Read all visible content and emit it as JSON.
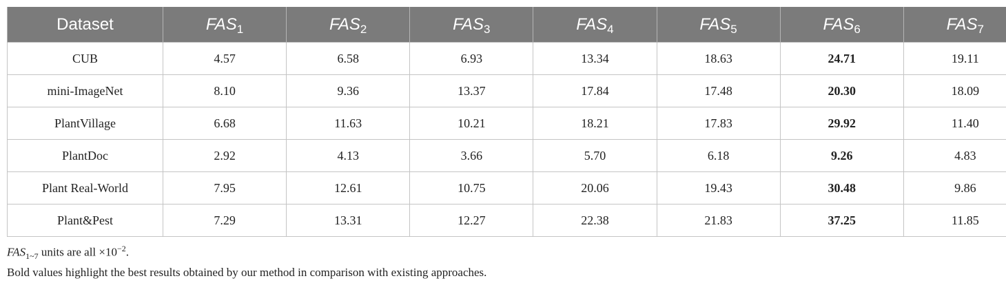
{
  "table": {
    "header": [
      "Dataset",
      "FAS",
      "FAS",
      "FAS",
      "FAS",
      "FAS",
      "FAS",
      "FAS"
    ],
    "header_subs": [
      "",
      "1",
      "2",
      "3",
      "4",
      "5",
      "6",
      "7"
    ],
    "rows": [
      {
        "dataset": "CUB",
        "values": [
          "4.57",
          "6.58",
          "6.93",
          "13.34",
          "18.63",
          "24.71",
          "19.11"
        ]
      },
      {
        "dataset": "mini-ImageNet",
        "values": [
          "8.10",
          "9.36",
          "13.37",
          "17.84",
          "17.48",
          "20.30",
          "18.09"
        ]
      },
      {
        "dataset": "PlantVillage",
        "values": [
          "6.68",
          "11.63",
          "10.21",
          "18.21",
          "17.83",
          "29.92",
          "11.40"
        ]
      },
      {
        "dataset": "PlantDoc",
        "values": [
          "2.92",
          "4.13",
          "3.66",
          "5.70",
          "6.18",
          "9.26",
          "4.83"
        ]
      },
      {
        "dataset": "Plant Real-World",
        "values": [
          "7.95",
          "12.61",
          "10.75",
          "20.06",
          "19.43",
          "30.48",
          "9.86"
        ]
      },
      {
        "dataset": "Plant&Pest",
        "values": [
          "7.29",
          "13.31",
          "12.27",
          "22.38",
          "21.83",
          "37.25",
          "11.85"
        ]
      }
    ],
    "bold_column": 6
  },
  "notes": {
    "note1_prefix": "FAS",
    "note1_sub": "1~7",
    "note1_mid": " units are all ×10",
    "note1_sup": "−2",
    "note1_end": ".",
    "note2": "Bold values highlight the best results obtained by our method in comparison with existing approaches."
  }
}
